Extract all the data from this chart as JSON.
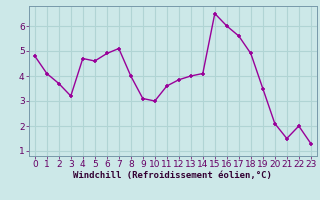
{
  "x": [
    0,
    1,
    2,
    3,
    4,
    5,
    6,
    7,
    8,
    9,
    10,
    11,
    12,
    13,
    14,
    15,
    16,
    17,
    18,
    19,
    20,
    21,
    22,
    23
  ],
  "y": [
    4.8,
    4.1,
    3.7,
    3.2,
    4.7,
    4.6,
    4.9,
    5.1,
    4.0,
    3.1,
    3.0,
    3.6,
    3.85,
    4.0,
    4.1,
    6.5,
    6.0,
    5.6,
    4.9,
    3.5,
    2.1,
    1.5,
    2.0,
    1.3
  ],
  "line_color": "#990099",
  "marker": "+",
  "background_color": "#cce8e8",
  "grid_color": "#b0d4d4",
  "xlabel": "Windchill (Refroidissement éolien,°C)",
  "ylim": [
    0.8,
    6.8
  ],
  "xlim": [
    -0.5,
    23.5
  ],
  "yticks": [
    1,
    2,
    3,
    4,
    5,
    6
  ],
  "xticks": [
    0,
    1,
    2,
    3,
    4,
    5,
    6,
    7,
    8,
    9,
    10,
    11,
    12,
    13,
    14,
    15,
    16,
    17,
    18,
    19,
    20,
    21,
    22,
    23
  ],
  "xlabel_fontsize": 6.5,
  "tick_fontsize": 6.5,
  "line_width": 1.0,
  "marker_size": 3.5,
  "spine_color": "#7799aa"
}
